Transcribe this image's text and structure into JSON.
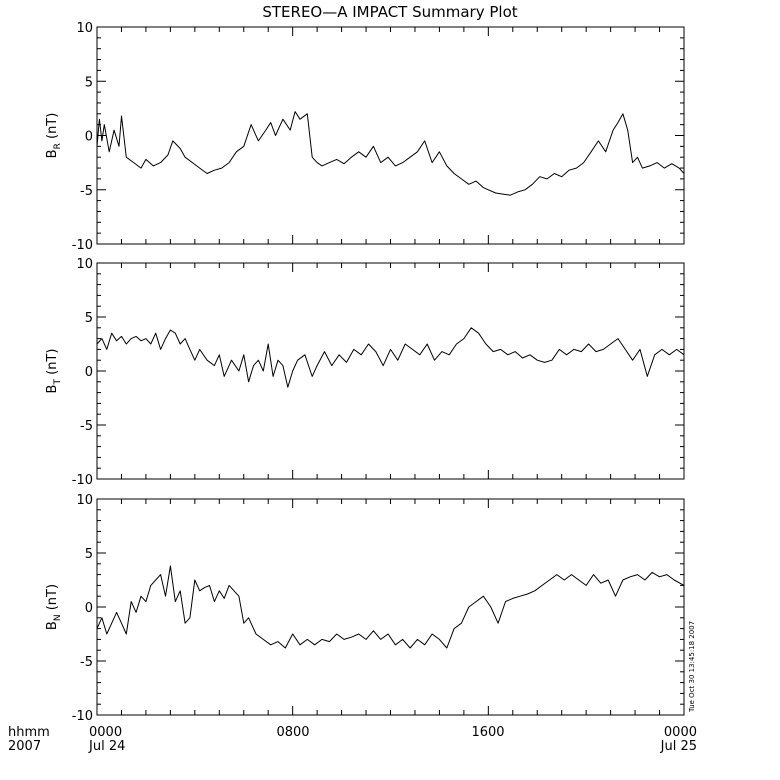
{
  "title": "STEREO—A IMPACT Summary Plot",
  "timestamp": "Tue Oct 30 13:45:18 2007",
  "x_axis": {
    "corner_labels": [
      "hhmm",
      "2007"
    ],
    "tick_labels": [
      {
        "time": "0000",
        "date": "Jul 24"
      },
      {
        "time": "0800",
        "date": ""
      },
      {
        "time": "1600",
        "date": ""
      },
      {
        "time": "0000",
        "date": "Jul 25"
      }
    ]
  },
  "chart_data": [
    {
      "type": "line",
      "ylabel": {
        "main": "B",
        "sub": "R",
        "unit": " (nT)"
      },
      "ylim": [
        -10,
        10
      ],
      "yticks": [
        -10,
        -5,
        0,
        5,
        10
      ],
      "xlim": [
        0,
        24
      ],
      "x_unit": "hours since 2007-07-24 00:00",
      "x": [
        0.0,
        0.1,
        0.2,
        0.3,
        0.5,
        0.7,
        0.9,
        1.0,
        1.2,
        1.5,
        1.8,
        2.0,
        2.3,
        2.6,
        2.9,
        3.1,
        3.4,
        3.6,
        3.9,
        4.2,
        4.5,
        4.8,
        5.1,
        5.4,
        5.7,
        6.0,
        6.3,
        6.6,
        6.9,
        7.1,
        7.3,
        7.6,
        7.9,
        8.1,
        8.3,
        8.6,
        8.8,
        9.0,
        9.2,
        9.5,
        9.8,
        10.1,
        10.4,
        10.7,
        11.0,
        11.3,
        11.6,
        11.9,
        12.2,
        12.5,
        12.8,
        13.1,
        13.4,
        13.7,
        14.0,
        14.3,
        14.6,
        14.9,
        15.2,
        15.5,
        15.8,
        16.0,
        16.3,
        16.6,
        16.9,
        17.2,
        17.5,
        17.8,
        18.1,
        18.4,
        18.7,
        19.0,
        19.3,
        19.6,
        19.9,
        20.2,
        20.5,
        20.8,
        21.1,
        21.3,
        21.5,
        21.7,
        21.9,
        22.1,
        22.3,
        22.6,
        22.9,
        23.2,
        23.5,
        23.8,
        24.0
      ],
      "y": [
        -1.0,
        1.5,
        -0.5,
        1.0,
        -1.5,
        0.5,
        -1.0,
        1.8,
        -2.0,
        -2.5,
        -3.0,
        -2.2,
        -2.8,
        -2.5,
        -1.8,
        -0.5,
        -1.2,
        -2.0,
        -2.5,
        -3.0,
        -3.5,
        -3.2,
        -3.0,
        -2.5,
        -1.5,
        -1.0,
        1.0,
        -0.5,
        0.5,
        1.2,
        0.0,
        1.5,
        0.5,
        2.2,
        1.5,
        2.0,
        -2.0,
        -2.5,
        -2.8,
        -2.5,
        -2.2,
        -2.6,
        -2.0,
        -1.5,
        -2.0,
        -1.0,
        -2.5,
        -2.0,
        -2.8,
        -2.5,
        -2.0,
        -1.5,
        -0.5,
        -2.5,
        -1.5,
        -2.8,
        -3.5,
        -4.0,
        -4.5,
        -4.2,
        -4.8,
        -5.0,
        -5.3,
        -5.4,
        -5.5,
        -5.2,
        -5.0,
        -4.5,
        -3.8,
        -4.0,
        -3.5,
        -3.8,
        -3.2,
        -3.0,
        -2.5,
        -1.5,
        -0.5,
        -1.5,
        0.5,
        1.2,
        2.0,
        0.5,
        -2.5,
        -2.0,
        -3.0,
        -2.8,
        -2.5,
        -3.0,
        -2.6,
        -3.0,
        -3.5
      ]
    },
    {
      "type": "line",
      "ylabel": {
        "main": "B",
        "sub": "T",
        "unit": " (nT)"
      },
      "ylim": [
        -10,
        10
      ],
      "yticks": [
        -10,
        -5,
        0,
        5,
        10
      ],
      "xlim": [
        0,
        24
      ],
      "x_unit": "hours since 2007-07-24 00:00",
      "x": [
        0.0,
        0.2,
        0.4,
        0.6,
        0.8,
        1.0,
        1.2,
        1.4,
        1.6,
        1.8,
        2.0,
        2.2,
        2.4,
        2.6,
        2.8,
        3.0,
        3.2,
        3.4,
        3.6,
        3.8,
        4.0,
        4.2,
        4.5,
        4.8,
        5.0,
        5.2,
        5.5,
        5.8,
        6.0,
        6.2,
        6.4,
        6.6,
        6.8,
        7.0,
        7.2,
        7.4,
        7.6,
        7.8,
        8.0,
        8.2,
        8.5,
        8.8,
        9.0,
        9.3,
        9.6,
        9.9,
        10.2,
        10.5,
        10.8,
        11.1,
        11.4,
        11.7,
        12.0,
        12.3,
        12.6,
        12.9,
        13.2,
        13.5,
        13.8,
        14.1,
        14.4,
        14.7,
        15.0,
        15.3,
        15.6,
        15.9,
        16.2,
        16.5,
        16.8,
        17.1,
        17.4,
        17.7,
        18.0,
        18.3,
        18.6,
        18.9,
        19.2,
        19.5,
        19.8,
        20.1,
        20.4,
        20.7,
        21.0,
        21.3,
        21.6,
        21.9,
        22.2,
        22.5,
        22.8,
        23.1,
        23.4,
        23.7,
        24.0
      ],
      "y": [
        2.5,
        3.0,
        2.0,
        3.5,
        2.8,
        3.2,
        2.5,
        3.0,
        3.2,
        2.8,
        3.0,
        2.5,
        3.5,
        2.0,
        3.0,
        3.8,
        3.5,
        2.5,
        3.0,
        2.0,
        1.0,
        2.0,
        1.0,
        0.5,
        1.5,
        -0.5,
        1.0,
        0.0,
        1.5,
        -1.0,
        0.5,
        1.0,
        0.0,
        2.5,
        -0.5,
        1.0,
        0.5,
        -1.5,
        0.0,
        1.0,
        1.5,
        -0.5,
        0.5,
        1.8,
        0.5,
        1.5,
        0.8,
        2.0,
        1.5,
        2.5,
        1.8,
        0.5,
        2.0,
        1.0,
        2.5,
        2.0,
        1.5,
        2.5,
        1.0,
        1.8,
        1.5,
        2.5,
        3.0,
        4.0,
        3.5,
        2.5,
        1.8,
        2.0,
        1.5,
        1.8,
        1.2,
        1.5,
        1.0,
        0.8,
        1.0,
        2.0,
        1.5,
        2.0,
        1.8,
        2.5,
        1.8,
        2.0,
        2.5,
        3.0,
        2.0,
        1.0,
        2.0,
        -0.5,
        1.5,
        2.0,
        1.5,
        2.0,
        1.5
      ]
    },
    {
      "type": "line",
      "ylabel": {
        "main": "B",
        "sub": "N",
        "unit": " (nT)"
      },
      "ylim": [
        -10,
        10
      ],
      "yticks": [
        -10,
        -5,
        0,
        5,
        10
      ],
      "xlim": [
        0,
        24
      ],
      "x_unit": "hours since 2007-07-24 00:00",
      "x": [
        0.0,
        0.2,
        0.4,
        0.6,
        0.8,
        1.0,
        1.2,
        1.4,
        1.6,
        1.8,
        2.0,
        2.2,
        2.4,
        2.6,
        2.8,
        3.0,
        3.2,
        3.4,
        3.6,
        3.8,
        4.0,
        4.2,
        4.4,
        4.6,
        4.8,
        5.0,
        5.2,
        5.4,
        5.6,
        5.8,
        6.0,
        6.2,
        6.5,
        6.8,
        7.1,
        7.4,
        7.7,
        8.0,
        8.3,
        8.6,
        8.9,
        9.2,
        9.5,
        9.8,
        10.1,
        10.4,
        10.7,
        11.0,
        11.3,
        11.6,
        11.9,
        12.2,
        12.5,
        12.8,
        13.1,
        13.4,
        13.7,
        14.0,
        14.3,
        14.6,
        14.9,
        15.2,
        15.5,
        15.8,
        16.1,
        16.4,
        16.7,
        17.0,
        17.3,
        17.6,
        17.9,
        18.2,
        18.5,
        18.8,
        19.1,
        19.4,
        19.7,
        20.0,
        20.3,
        20.6,
        20.9,
        21.2,
        21.5,
        21.8,
        22.1,
        22.4,
        22.7,
        23.0,
        23.3,
        23.6,
        24.0
      ],
      "y": [
        -2.0,
        -1.0,
        -2.5,
        -1.5,
        -0.5,
        -1.5,
        -2.5,
        0.5,
        -0.5,
        1.0,
        0.5,
        2.0,
        2.5,
        3.0,
        1.0,
        3.8,
        0.5,
        1.5,
        -1.5,
        -1.0,
        2.5,
        1.5,
        1.8,
        2.0,
        0.5,
        1.5,
        0.8,
        2.0,
        1.5,
        1.0,
        -1.5,
        -1.0,
        -2.5,
        -3.0,
        -3.5,
        -3.2,
        -3.8,
        -2.5,
        -3.5,
        -3.0,
        -3.5,
        -3.0,
        -3.2,
        -2.5,
        -3.0,
        -2.8,
        -2.5,
        -3.0,
        -2.2,
        -3.0,
        -2.5,
        -3.5,
        -3.0,
        -3.8,
        -3.0,
        -3.5,
        -2.5,
        -3.0,
        -3.8,
        -2.0,
        -1.5,
        0.0,
        0.5,
        1.0,
        0.0,
        -1.5,
        0.5,
        0.8,
        1.0,
        1.2,
        1.5,
        2.0,
        2.5,
        3.0,
        2.5,
        3.0,
        2.5,
        2.0,
        3.0,
        2.2,
        2.5,
        1.0,
        2.5,
        2.8,
        3.0,
        2.5,
        3.2,
        2.8,
        3.0,
        2.5,
        2.0
      ]
    }
  ]
}
